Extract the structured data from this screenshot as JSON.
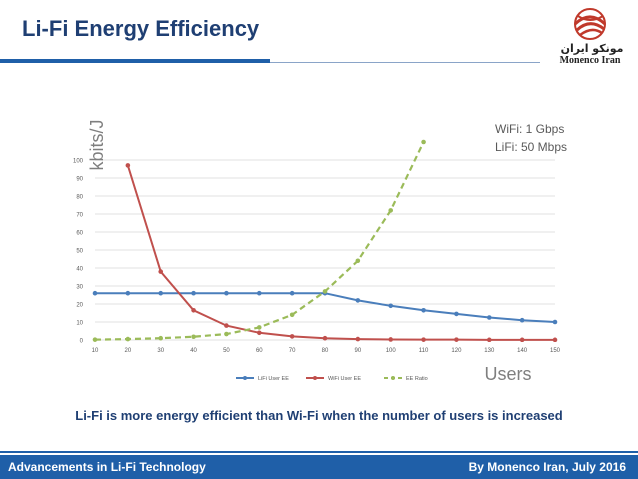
{
  "slide": {
    "title": "Li-Fi Energy Efficiency",
    "caption": "Li-Fi is more energy efficient than Wi-Fi when the number of users is increased",
    "footer_left": "Advancements in Li-Fi Technology",
    "footer_right": "By Monenco Iran, July 2016"
  },
  "logo": {
    "name": "Monenco Iran",
    "name_fa": "مونکو ایران"
  },
  "colors": {
    "title": "#1f3f73",
    "bar": "#1f5fa8",
    "lifi": "#4a7ebb",
    "wifi": "#c0504d",
    "ratio": "#9bbb59"
  },
  "chart_data": {
    "type": "line",
    "ylabel": "kbits/J",
    "xlabel": "Users",
    "note_lines": [
      "WiFi: 1 Gbps",
      "LiFi: 50 Mbps"
    ],
    "x": [
      10,
      20,
      30,
      40,
      50,
      60,
      70,
      80,
      90,
      100,
      110,
      120,
      130,
      140,
      150
    ],
    "yticks": [
      0,
      10,
      20,
      30,
      40,
      50,
      60,
      70,
      80,
      90,
      100
    ],
    "ylim": [
      0,
      100
    ],
    "xlim": [
      10,
      150
    ],
    "grid": true,
    "legend_position": "bottom",
    "series": [
      {
        "name": "LiFi User EE",
        "style": "solid",
        "values": [
          26,
          26,
          26,
          26,
          26,
          26,
          26,
          26,
          22,
          19,
          16.5,
          14.5,
          12.5,
          11,
          10
        ]
      },
      {
        "name": "WiFi User EE",
        "style": "solid",
        "values": [
          null,
          97,
          38,
          16.5,
          8,
          4,
          2,
          1,
          0.5,
          0.3,
          0.2,
          0.2,
          0.1,
          0.1,
          0.1
        ]
      },
      {
        "name": "EE Ratio",
        "style": "dashed",
        "values": [
          0.2,
          0.5,
          1,
          1.8,
          3.3,
          7,
          14,
          27,
          44,
          72,
          110,
          null,
          null,
          null,
          null
        ]
      }
    ]
  }
}
